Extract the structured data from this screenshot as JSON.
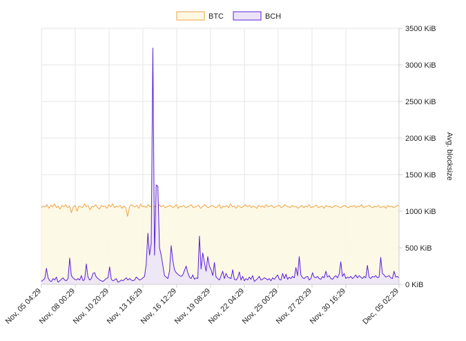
{
  "chart_data": {
    "type": "area",
    "title": "",
    "xlabel": "",
    "ylabel": "Avg. blocksize",
    "y_unit": "KiB",
    "ylim": [
      0,
      3500
    ],
    "y_ticks": [
      0,
      500,
      1000,
      1500,
      2000,
      2500,
      3000,
      3500
    ],
    "y_tick_labels": [
      "0 KiB",
      "500 KiB",
      "1000 KiB",
      "1500 KiB",
      "2000 KiB",
      "2500 KiB",
      "3000 KiB",
      "3500 KiB"
    ],
    "x_tick_labels": [
      "Nov, 05 04:29",
      "Nov, 08 00:29",
      "Nov, 10 20:29",
      "Nov, 13 16:29",
      "Nov, 16 12:29",
      "Nov, 19 08:29",
      "Nov, 22 04:29",
      "Nov, 25 00:29",
      "Nov, 27 20:29",
      "Nov, 30 16:29",
      "Dec, 05 02:29"
    ],
    "grid": true,
    "legend_position": "top-center",
    "series": [
      {
        "name": "BTC",
        "color": "#f0a040",
        "fill": "#fdf8e4",
        "values": [
          1050,
          1070,
          1060,
          1090,
          1040,
          1080,
          1060,
          1100,
          1050,
          1070,
          1030,
          1080,
          1060,
          1090,
          1050,
          1070,
          980,
          1060,
          1080,
          1000,
          1070,
          1060,
          1050,
          1100,
          1060,
          1080,
          1020,
          1070,
          1060,
          1090,
          1050,
          1030,
          1080,
          1060,
          1070,
          1040,
          1090,
          1060,
          1100,
          1050,
          1070,
          1060,
          1080,
          1040,
          1070,
          1050,
          930,
          1060,
          1090,
          1070,
          1060,
          1080,
          1040,
          1100,
          1060,
          1070,
          1050,
          1090,
          1060,
          1080,
          1050,
          1070,
          1040,
          1090,
          1060,
          1080,
          1050,
          1060,
          1070,
          1080,
          1050,
          1060,
          1090,
          1040,
          1070,
          1060,
          1080,
          1050,
          1060,
          1070,
          1090,
          1050,
          1060,
          1070,
          1080,
          1040,
          1060,
          1090,
          1070,
          1050,
          1060,
          1080,
          1070,
          1050,
          1060,
          1090,
          1040,
          1070,
          1060,
          1080,
          1050,
          1100,
          1060,
          1070,
          1040,
          1080,
          1060,
          1050,
          1070,
          1090,
          1060,
          1080,
          1050,
          1070,
          1060,
          1040,
          1080,
          1060,
          1070,
          1050,
          1090,
          1060,
          1070,
          1080,
          1050,
          1060,
          1070,
          1080,
          1050,
          1060,
          1090,
          1070,
          1060,
          1050,
          1080,
          1060,
          1070,
          1040,
          1060,
          1080,
          1050,
          1070,
          1060,
          1090,
          1050,
          1060,
          1070,
          1080,
          1050,
          1060,
          1070,
          1040,
          1080,
          1060,
          1070,
          1050,
          1060,
          1080,
          1070,
          1060,
          1050,
          1070,
          1080,
          1060,
          1050,
          1070,
          1060,
          1080,
          1050,
          1070,
          1060,
          1090,
          1050,
          1060,
          1070,
          1080,
          1060,
          1050,
          1070,
          1060,
          1080,
          1050,
          1060,
          1070,
          1040,
          1080,
          1060,
          1070,
          1050,
          1060,
          1080,
          1070
        ]
      },
      {
        "name": "BCH",
        "color": "#5a1fd6",
        "fill": "#ece4f6",
        "values": [
          40,
          60,
          80,
          220,
          90,
          50,
          40,
          80,
          60,
          100,
          30,
          50,
          70,
          90,
          60,
          50,
          80,
          360,
          120,
          90,
          70,
          60,
          80,
          60,
          120,
          50,
          70,
          280,
          100,
          60,
          80,
          150,
          160,
          100,
          80,
          60,
          50,
          40,
          60,
          80,
          90,
          240,
          70,
          50,
          60,
          80,
          30,
          40,
          60,
          50,
          70,
          90,
          60,
          80,
          60,
          50,
          60,
          100,
          80,
          60,
          70,
          90,
          110,
          280,
          700,
          400,
          560,
          3230,
          400,
          1360,
          1340,
          500,
          400,
          260,
          120,
          100,
          80,
          180,
          530,
          330,
          200,
          160,
          140,
          120,
          110,
          130,
          190,
          250,
          160,
          100,
          80,
          130,
          70,
          90,
          80,
          660,
          210,
          430,
          300,
          180,
          380,
          250,
          200,
          120,
          300,
          100,
          80,
          60,
          120,
          180,
          80,
          150,
          100,
          90,
          80,
          200,
          70,
          60,
          90,
          170,
          60,
          110,
          50,
          80,
          60,
          100,
          70,
          120,
          40,
          60,
          80,
          110,
          60,
          70,
          90,
          80,
          60,
          80,
          50,
          90,
          70,
          100,
          130,
          70,
          60,
          150,
          80,
          140,
          70,
          100,
          80,
          110,
          90,
          230,
          120,
          380,
          130,
          90,
          80,
          100,
          110,
          60,
          80,
          160,
          100,
          90,
          110,
          80,
          70,
          110,
          90,
          180,
          100,
          120,
          80,
          70,
          100,
          120,
          90,
          140,
          310,
          110,
          150,
          80,
          100,
          90,
          110,
          80,
          100,
          130,
          90,
          120,
          100,
          80,
          110,
          90,
          260,
          100,
          80,
          110,
          100,
          120,
          90,
          100,
          370,
          150,
          130,
          100,
          110,
          120,
          90,
          80,
          180,
          100,
          110,
          90
        ]
      }
    ]
  }
}
